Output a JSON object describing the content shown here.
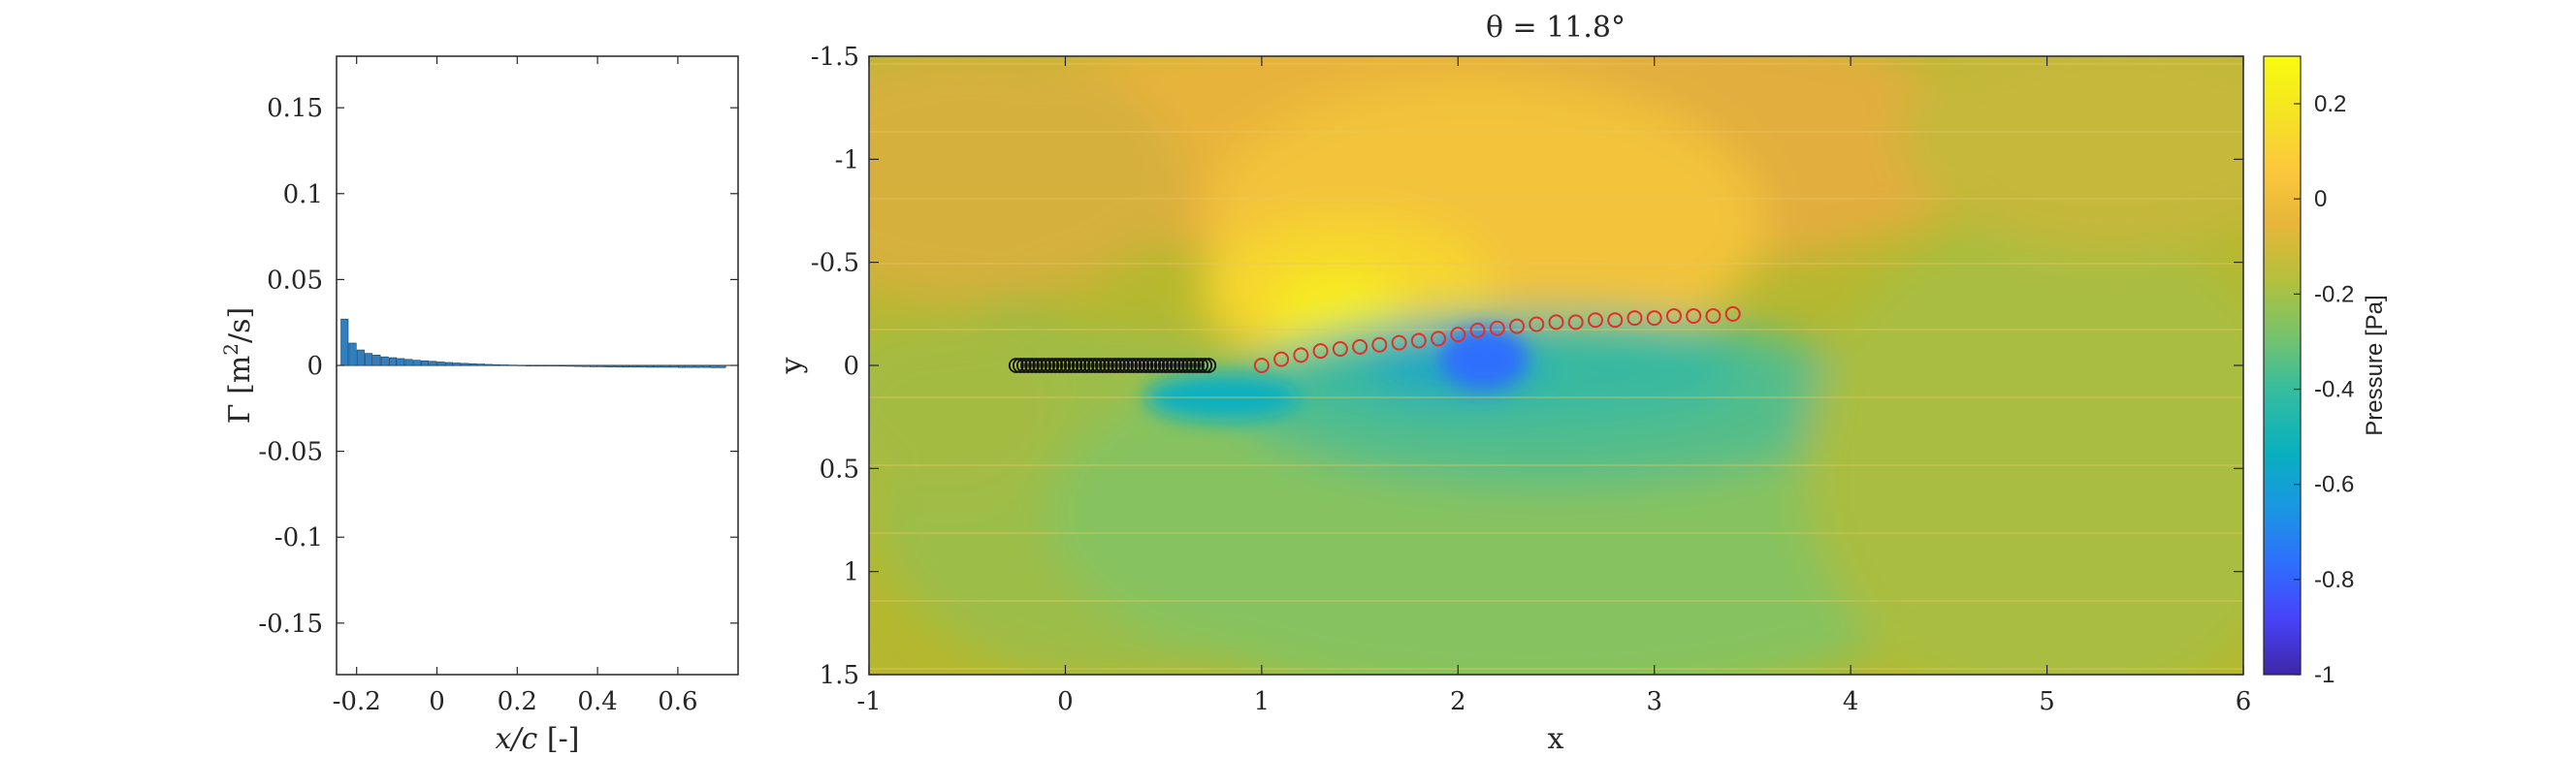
{
  "chart_data": [
    {
      "type": "bar",
      "xlabel": "x/c [-]",
      "ylabel": "Γ [m²/s]",
      "xlim": [
        -0.25,
        0.75
      ],
      "ylim": [
        -0.18,
        0.18
      ],
      "xticks": [
        "-0.2",
        "0",
        "0.2",
        "0.4",
        "0.6"
      ],
      "xtick_values": [
        -0.2,
        0,
        0.2,
        0.4,
        0.6
      ],
      "yticks": [
        "0.15",
        "0.1",
        "0.05",
        "0",
        "-0.05",
        "-0.1",
        "-0.15"
      ],
      "ytick_values": [
        0.15,
        0.1,
        0.05,
        0,
        -0.05,
        -0.1,
        -0.15
      ],
      "bar_color": "#2f7fc1",
      "x": [
        -0.23,
        -0.21,
        -0.19,
        -0.17,
        -0.15,
        -0.13,
        -0.11,
        -0.09,
        -0.07,
        -0.05,
        -0.03,
        -0.01,
        0.01,
        0.03,
        0.05,
        0.07,
        0.09,
        0.11,
        0.13,
        0.15,
        0.17,
        0.19,
        0.21,
        0.23,
        0.25,
        0.27,
        0.29,
        0.31,
        0.33,
        0.35,
        0.37,
        0.39,
        0.41,
        0.43,
        0.45,
        0.47,
        0.49,
        0.51,
        0.53,
        0.55,
        0.57,
        0.59,
        0.61,
        0.63,
        0.65,
        0.67,
        0.69,
        0.71
      ],
      "values": [
        0.027,
        0.013,
        0.009,
        0.007,
        0.006,
        0.005,
        0.0045,
        0.004,
        0.0035,
        0.003,
        0.0027,
        0.0024,
        0.002,
        0.0017,
        0.0014,
        0.0012,
        0.001,
        0.0008,
        0.0006,
        0.0004,
        0.0003,
        0.0002,
        0.0001,
        0.0,
        -0.0001,
        -0.0002,
        -0.0003,
        -0.0004,
        -0.0005,
        -0.0006,
        -0.0007,
        -0.0008,
        -0.0008,
        -0.0009,
        -0.0009,
        -0.001,
        -0.001,
        -0.001,
        -0.0011,
        -0.0011,
        -0.0011,
        -0.0011,
        -0.0012,
        -0.0012,
        -0.0012,
        -0.0012,
        -0.0013,
        -0.0013
      ]
    },
    {
      "type": "heatmap",
      "title": "θ = 11.8°",
      "xlabel": "x",
      "ylabel": "y",
      "xlim": [
        -1,
        6
      ],
      "ylim": [
        -1.5,
        1.5
      ],
      "y_reversed": true,
      "xticks": [
        "-1",
        "0",
        "1",
        "2",
        "3",
        "4",
        "5",
        "6"
      ],
      "xtick_values": [
        -1,
        0,
        1,
        2,
        3,
        4,
        5,
        6
      ],
      "yticks": [
        "-1.5",
        "-1",
        "-0.5",
        "0",
        "0.5",
        "1",
        "1.5"
      ],
      "ytick_values": [
        -1.5,
        -1,
        -0.5,
        0,
        0.5,
        1,
        1.5
      ],
      "colorbar": {
        "label": "Pressure [Pa]",
        "range": [
          -1,
          0.3
        ],
        "ticks": [
          "0.2",
          "0",
          "-0.2",
          "-0.4",
          "-0.6",
          "-0.8",
          "-1"
        ],
        "tick_values": [
          0.2,
          0,
          -0.2,
          -0.4,
          -0.6,
          -0.8,
          -1
        ],
        "colormap": [
          "#3e26a8",
          "#4743f8",
          "#2f6ffd",
          "#1a97e2",
          "#09b0bf",
          "#35bd9f",
          "#78c36a",
          "#b5c03b",
          "#e7b63a",
          "#fcc83c",
          "#f4e422",
          "#f9fb0e"
        ]
      },
      "vortex_markers_black": {
        "x": [
          -0.25,
          -0.23,
          -0.21,
          -0.19,
          -0.17,
          -0.15,
          -0.13,
          -0.11,
          -0.09,
          -0.07,
          -0.05,
          -0.03,
          -0.01,
          0.01,
          0.03,
          0.05,
          0.07,
          0.09,
          0.11,
          0.13,
          0.15,
          0.17,
          0.19,
          0.21,
          0.23,
          0.25,
          0.27,
          0.29,
          0.31,
          0.33,
          0.35,
          0.37,
          0.39,
          0.41,
          0.43,
          0.45,
          0.47,
          0.49,
          0.51,
          0.53,
          0.55,
          0.57,
          0.59,
          0.61,
          0.63,
          0.65,
          0.67,
          0.69,
          0.71,
          0.73
        ],
        "y": [
          0,
          0,
          0,
          0,
          0,
          0,
          0,
          0,
          0,
          0,
          0,
          0,
          0,
          0,
          0,
          0,
          0,
          0,
          0,
          0,
          0,
          0,
          0,
          0,
          0,
          0,
          0,
          0,
          0,
          0,
          0,
          0,
          0,
          0,
          0,
          0,
          0,
          0,
          0,
          0,
          0,
          0,
          0,
          0,
          0,
          0,
          0,
          0,
          0,
          0
        ],
        "color": "#111111"
      },
      "vortex_markers_red": {
        "x": [
          1.0,
          1.1,
          1.2,
          1.3,
          1.4,
          1.5,
          1.6,
          1.7,
          1.8,
          1.9,
          2.0,
          2.1,
          2.2,
          2.3,
          2.4,
          2.5,
          2.6,
          2.7,
          2.8,
          2.9,
          3.0,
          3.1,
          3.2,
          3.3,
          3.4
        ],
        "y": [
          0.0,
          -0.03,
          -0.05,
          -0.07,
          -0.08,
          -0.09,
          -0.1,
          -0.11,
          -0.12,
          -0.13,
          -0.15,
          -0.17,
          -0.18,
          -0.19,
          -0.2,
          -0.21,
          -0.21,
          -0.22,
          -0.22,
          -0.23,
          -0.23,
          -0.24,
          -0.24,
          -0.24,
          -0.25
        ],
        "color": "#e0302a"
      }
    }
  ]
}
